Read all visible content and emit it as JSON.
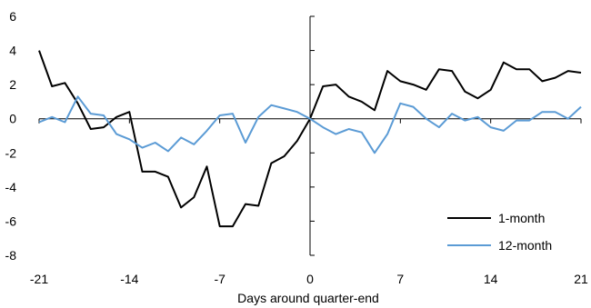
{
  "chart_data": {
    "type": "line",
    "title": "",
    "xlabel": "Days around quarter-end",
    "ylabel": "",
    "xlim": [
      -21,
      21
    ],
    "ylim": [
      -8,
      6
    ],
    "x_ticks": [
      -21,
      -14,
      -7,
      0,
      7,
      14,
      21
    ],
    "y_ticks": [
      6,
      4,
      2,
      0,
      -2,
      -4,
      -6,
      -8
    ],
    "grid": false,
    "legend_position": "bottom-right",
    "x": [
      -21,
      -20,
      -19,
      -18,
      -17,
      -16,
      -15,
      -14,
      -13,
      -12,
      -11,
      -10,
      -9,
      -8,
      -7,
      -6,
      -5,
      -4,
      -3,
      -2,
      -1,
      0,
      1,
      2,
      3,
      4,
      5,
      6,
      7,
      8,
      9,
      10,
      11,
      12,
      13,
      14,
      15,
      16,
      17,
      18,
      19,
      20,
      21
    ],
    "series": [
      {
        "name": "1-month",
        "color": "#000000",
        "values": [
          4.0,
          1.9,
          2.1,
          0.9,
          -0.6,
          -0.5,
          0.1,
          0.4,
          -3.1,
          -3.1,
          -3.4,
          -5.2,
          -4.6,
          -2.8,
          -6.3,
          -6.3,
          -5.0,
          -5.1,
          -2.6,
          -2.2,
          -1.3,
          0.0,
          1.9,
          2.0,
          1.3,
          1.0,
          0.5,
          2.8,
          2.2,
          2.0,
          1.7,
          2.9,
          2.8,
          1.6,
          1.2,
          1.7,
          3.3,
          2.9,
          2.9,
          2.2,
          2.4,
          2.8,
          2.7
        ]
      },
      {
        "name": "12-month",
        "color": "#5b9bd5",
        "values": [
          -0.2,
          0.1,
          -0.2,
          1.3,
          0.3,
          0.2,
          -0.9,
          -1.2,
          -1.7,
          -1.4,
          -1.9,
          -1.1,
          -1.5,
          -0.7,
          0.2,
          0.3,
          -1.4,
          0.1,
          0.8,
          0.6,
          0.4,
          0.0,
          -0.5,
          -0.9,
          -0.6,
          -0.8,
          -2.0,
          -0.9,
          0.9,
          0.7,
          0.0,
          -0.5,
          0.3,
          -0.1,
          0.1,
          -0.5,
          -0.7,
          -0.1,
          -0.1,
          0.4,
          0.4,
          0.0,
          0.7
        ]
      }
    ]
  }
}
